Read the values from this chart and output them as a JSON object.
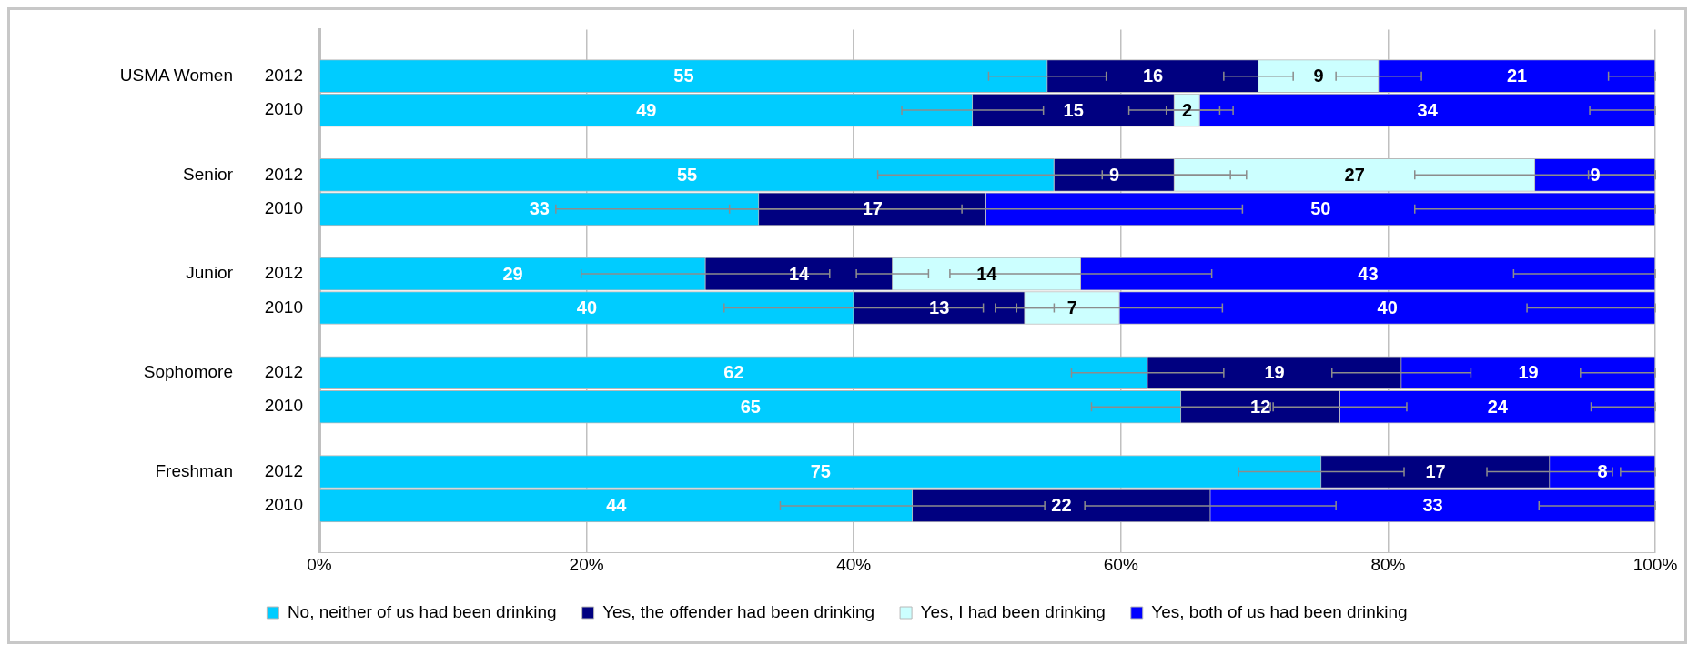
{
  "chart_data": {
    "type": "bar",
    "orientation": "horizontal",
    "stacked": true,
    "categories": [
      "2012",
      "2010",
      "2012",
      "2010",
      "2012",
      "2010",
      "2012",
      "2010",
      "2012",
      "2010"
    ],
    "annotations": [
      "USMA Women",
      "Senior",
      "Junior",
      "Sophomore",
      "Freshman"
    ],
    "series": [
      {
        "name": "No, neither of us had been drinking",
        "color": "#00ccff",
        "values": [
          54.5,
          48.9,
          55.0,
          32.9,
          28.9,
          40.0,
          62.0,
          64.5,
          75.0,
          44.4
        ],
        "value_labels": [
          "55",
          "49",
          "55",
          "33",
          "29",
          "40",
          "62",
          "65",
          "75",
          "44"
        ],
        "errors": [
          4.4,
          5.3,
          13.2,
          15.2,
          9.3,
          9.7,
          5.7,
          6.7,
          6.2,
          9.9
        ]
      },
      {
        "name": "Yes, the offender had been drinking",
        "color": "#000080",
        "values": [
          15.8,
          15.1,
          9.0,
          17.0,
          14.0,
          12.8,
          19.0,
          11.9,
          17.1,
          22.3
        ],
        "value_labels": [
          "16",
          "15",
          "9",
          "17",
          "14",
          "13",
          "19",
          "12",
          "17",
          "22"
        ],
        "errors": [
          2.6,
          3.4,
          5.4,
          19.2,
          2.7,
          2.2,
          5.2,
          5.0,
          4.7,
          9.4
        ]
      },
      {
        "name": "Yes, I had been drinking",
        "color": "#ccffff",
        "values": [
          9.0,
          1.9,
          27.0,
          null,
          14.1,
          7.1,
          null,
          null,
          null,
          null
        ],
        "value_labels": [
          "9",
          "2",
          "27",
          null,
          "14",
          "7",
          null,
          null,
          null,
          null
        ],
        "errors": [
          3.2,
          2.5,
          9.0,
          null,
          9.8,
          7.7,
          null,
          null,
          null,
          null
        ]
      },
      {
        "name": "Yes, both of us had been drinking",
        "color": "#0000ff",
        "values": [
          20.7,
          34.1,
          9.0,
          50.1,
          43.0,
          40.1,
          19.0,
          23.6,
          7.9,
          33.3
        ],
        "value_labels": [
          "21",
          "34",
          "9",
          "50",
          "43",
          "40",
          "19",
          "24",
          "8",
          "33"
        ],
        "errors": [
          [
            96.5,
            100
          ],
          [
            95.1,
            100
          ],
          [
            95,
            100
          ],
          [
            82,
            100
          ],
          [
            89.4,
            100
          ],
          [
            90.4,
            100
          ],
          [
            94.4,
            100
          ],
          [
            95.2,
            100
          ],
          [
            97.4,
            100
          ],
          [
            91.3,
            100
          ]
        ]
      }
    ],
    "xlim": [
      0,
      100
    ],
    "xticks": [
      {
        "value": 0,
        "label": "0%"
      },
      {
        "value": 20,
        "label": "20%"
      },
      {
        "value": 40,
        "label": "40%"
      },
      {
        "value": 60,
        "label": "60%"
      },
      {
        "value": 80,
        "label": "80%"
      },
      {
        "value": 100,
        "label": "100%"
      }
    ],
    "grid": "x",
    "legend": "bottom"
  }
}
